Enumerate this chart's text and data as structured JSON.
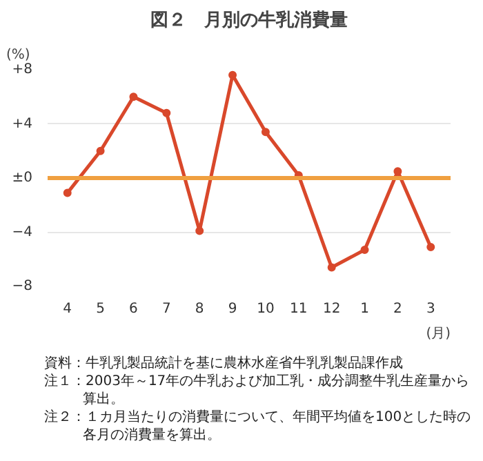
{
  "chart_data": {
    "type": "line",
    "title": "図２　月別の牛乳消費量",
    "xlabel": "(月)",
    "ylabel": "(%)",
    "categories": [
      "4",
      "5",
      "6",
      "7",
      "8",
      "9",
      "10",
      "11",
      "12",
      "1",
      "2",
      "3"
    ],
    "series": [
      {
        "color": "#d9482b",
        "values": [
          -1.1,
          2.0,
          6.0,
          4.8,
          -3.9,
          7.6,
          3.4,
          0.2,
          -6.6,
          -5.3,
          0.5,
          -5.1
        ]
      }
    ],
    "marker": "circle",
    "ylim": [
      -8,
      8
    ],
    "yticks": [
      {
        "value": 8,
        "label": "+8"
      },
      {
        "value": 4,
        "label": "+4"
      },
      {
        "value": 0,
        "label": "±0"
      },
      {
        "value": -4,
        "label": "−4"
      },
      {
        "value": -8,
        "label": "−8"
      }
    ],
    "grid": "y",
    "ref_lines": [
      {
        "axis": "y",
        "value": 0,
        "label": null,
        "color": "#f0a040"
      }
    ],
    "annotations": [
      "資料：牛乳乳製品統計を基に農林水産省牛乳乳製品課作成",
      "注１：2003年～17年の牛乳および加工乳・成分調整牛乳生産量から算出。",
      "注２：１カ月当たりの消費量について、年間平均値を100とした時の各月の消費量を算出。"
    ]
  }
}
